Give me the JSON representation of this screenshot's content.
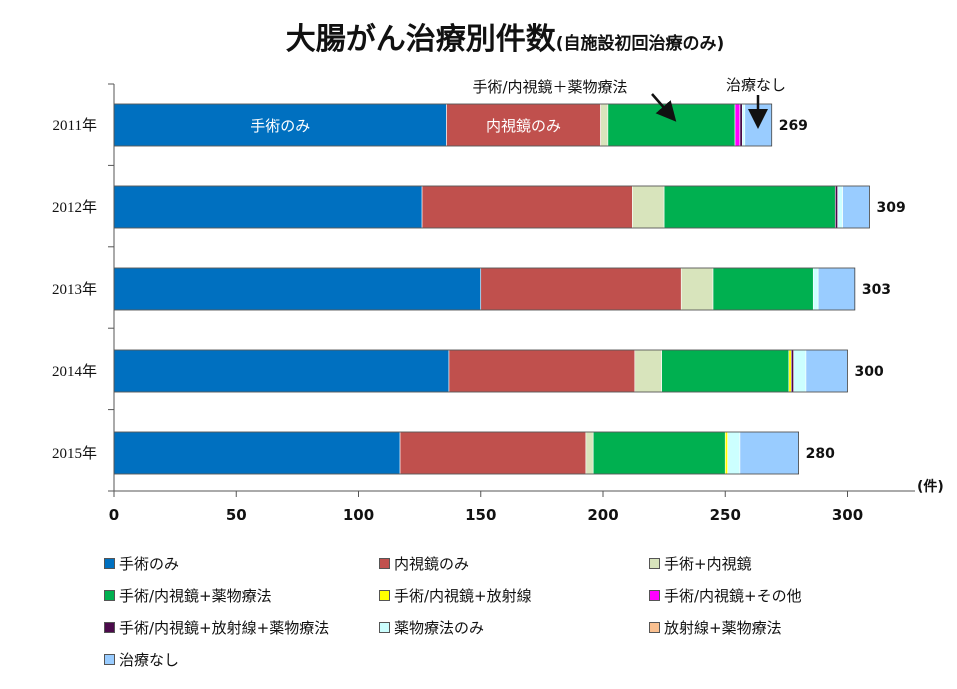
{
  "chart_data": {
    "type": "bar",
    "orientation": "horizontal",
    "stacked": true,
    "title": "大腸がん治療別件数",
    "subtitle": "(自施設初回治療のみ)",
    "x_unit": "(件)",
    "xlim": [
      0,
      325
    ],
    "x_ticks": [
      0,
      50,
      100,
      150,
      200,
      250,
      300
    ],
    "grid": false,
    "legend_position": "bottom",
    "categories": [
      "2011年",
      "2012年",
      "2013年",
      "2014年",
      "2015年"
    ],
    "totals": [
      269,
      309,
      303,
      300,
      280
    ],
    "series": [
      {
        "name": "手術のみ",
        "color": "#0070C0",
        "values": [
          136,
          126,
          150,
          137,
          117
        ]
      },
      {
        "name": "内視鏡のみ",
        "color": "#C0504D",
        "values": [
          63,
          86,
          82,
          76,
          76
        ]
      },
      {
        "name": "手術+内視鏡",
        "color": "#D8E4BC",
        "values": [
          3,
          13,
          13,
          11,
          3
        ]
      },
      {
        "name": "手術/内視鏡+薬物療法",
        "color": "#00B050",
        "values": [
          52,
          70,
          41,
          52,
          54
        ]
      },
      {
        "name": "手術/内視鏡+放射線",
        "color": "#FFFF00",
        "values": [
          0,
          0,
          0,
          1,
          1
        ]
      },
      {
        "name": "手術/内視鏡+その他",
        "color": "#FF00FF",
        "values": [
          2,
          0,
          0,
          0,
          0
        ]
      },
      {
        "name": "手術/内視鏡+放射線+薬物療法",
        "color": "#4B0A4B",
        "values": [
          1,
          1,
          0,
          1,
          0
        ]
      },
      {
        "name": "薬物療法のみ",
        "color": "#CCFFFF",
        "values": [
          1,
          2,
          2,
          5,
          5
        ]
      },
      {
        "name": "放射線+薬物療法",
        "color": "#FAC090",
        "values": [
          0,
          0,
          0,
          0,
          0
        ]
      },
      {
        "name": "治療なし",
        "color": "#99CCFF",
        "values": [
          11,
          11,
          15,
          17,
          24
        ]
      }
    ],
    "annotations": [
      {
        "text": "手術のみ",
        "category": "2011年",
        "series": "手術のみ"
      },
      {
        "text": "内視鏡のみ",
        "category": "2011年",
        "series": "内視鏡のみ"
      },
      {
        "text": "手術/内視鏡＋薬物療法",
        "category": "2011年",
        "series": "手術/内視鏡+薬物療法",
        "arrow": true
      },
      {
        "text": "治療なし",
        "category": "2011年",
        "series": "治療なし",
        "arrow": true
      }
    ]
  }
}
